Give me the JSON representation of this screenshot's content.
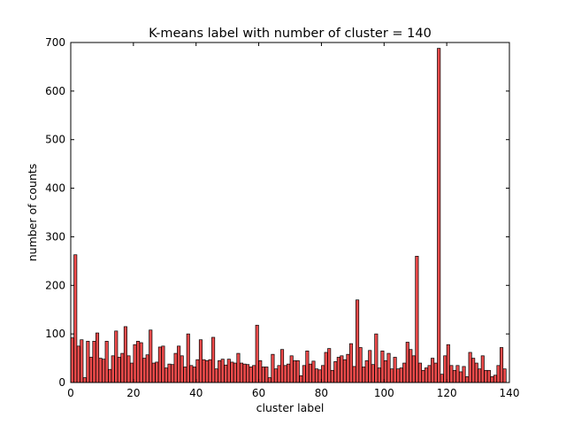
{
  "chart_data": {
    "type": "bar",
    "title": "K-means label with number of cluster = 140",
    "xlabel": "cluster label",
    "ylabel": "number of counts",
    "xlim": [
      0,
      140
    ],
    "ylim": [
      0,
      700
    ],
    "xticks": [
      0,
      20,
      40,
      60,
      80,
      100,
      120,
      140
    ],
    "yticks": [
      0,
      100,
      200,
      300,
      400,
      500,
      600,
      700
    ],
    "bar_color": "#ee4b4b",
    "edge_color": "#000000",
    "grid": false,
    "legend": "none",
    "categories": [
      0,
      1,
      2,
      3,
      4,
      5,
      6,
      7,
      8,
      9,
      10,
      11,
      12,
      13,
      14,
      15,
      16,
      17,
      18,
      19,
      20,
      21,
      22,
      23,
      24,
      25,
      26,
      27,
      28,
      29,
      30,
      31,
      32,
      33,
      34,
      35,
      36,
      37,
      38,
      39,
      40,
      41,
      42,
      43,
      44,
      45,
      46,
      47,
      48,
      49,
      50,
      51,
      52,
      53,
      54,
      55,
      56,
      57,
      58,
      59,
      60,
      61,
      62,
      63,
      64,
      65,
      66,
      67,
      68,
      69,
      70,
      71,
      72,
      73,
      74,
      75,
      76,
      77,
      78,
      79,
      80,
      81,
      82,
      83,
      84,
      85,
      86,
      87,
      88,
      89,
      90,
      91,
      92,
      93,
      94,
      95,
      96,
      97,
      98,
      99,
      100,
      101,
      102,
      103,
      104,
      105,
      106,
      107,
      108,
      109,
      110,
      111,
      112,
      113,
      114,
      115,
      116,
      117,
      118,
      119,
      120,
      121,
      122,
      123,
      124,
      125,
      126,
      127,
      128,
      129,
      130,
      131,
      132,
      133,
      134,
      135,
      136,
      137,
      138,
      139
    ],
    "values": [
      92,
      263,
      75,
      88,
      10,
      85,
      52,
      85,
      102,
      50,
      48,
      85,
      27,
      55,
      106,
      52,
      60,
      115,
      55,
      40,
      78,
      85,
      82,
      50,
      57,
      108,
      40,
      42,
      73,
      75,
      30,
      38,
      37,
      60,
      75,
      55,
      32,
      100,
      35,
      32,
      47,
      88,
      47,
      45,
      47,
      93,
      28,
      45,
      48,
      36,
      48,
      42,
      40,
      60,
      40,
      38,
      37,
      32,
      35,
      118,
      45,
      32,
      32,
      10,
      58,
      28,
      35,
      68,
      35,
      38,
      55,
      45,
      45,
      14,
      35,
      65,
      38,
      44,
      28,
      26,
      35,
      62,
      70,
      25,
      43,
      52,
      55,
      47,
      58,
      80,
      33,
      170,
      72,
      32,
      45,
      66,
      37,
      100,
      30,
      65,
      45,
      60,
      28,
      52,
      28,
      30,
      40,
      83,
      68,
      55,
      260,
      40,
      25,
      30,
      35,
      50,
      40,
      688,
      17,
      55,
      78,
      35,
      25,
      35,
      22,
      33,
      12,
      62,
      50,
      40,
      28,
      55,
      25,
      25,
      12,
      15,
      35,
      72,
      28,
      0
    ]
  }
}
